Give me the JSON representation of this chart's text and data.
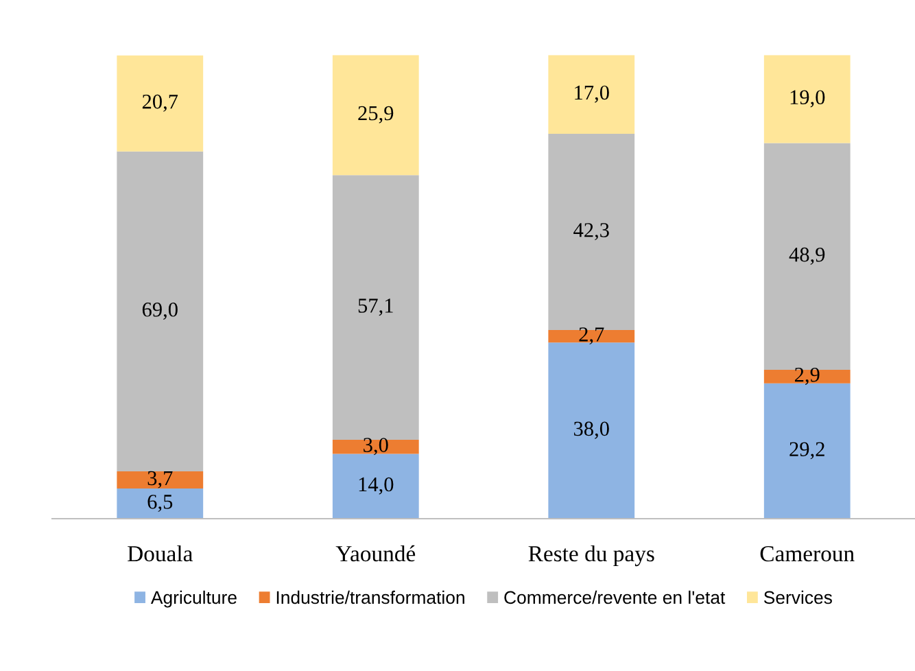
{
  "chart_data": {
    "type": "bar",
    "stacked": true,
    "legend": "bottom",
    "grid": false,
    "categories": [
      "Douala",
      "Yaoundé",
      "Reste du pays",
      "Cameroun"
    ],
    "series": [
      {
        "name": "Agriculture",
        "color": "#8eb4e3",
        "values": [
          6.5,
          14.0,
          38.0,
          29.2
        ],
        "value_labels": [
          "6,5",
          "14,0",
          "38,0",
          "29,2"
        ]
      },
      {
        "name": "Industrie/transformation",
        "color": "#ed7d31",
        "values": [
          3.7,
          3.0,
          2.7,
          2.9
        ],
        "value_labels": [
          "3,7",
          "3,0",
          "2,7",
          "2,9"
        ]
      },
      {
        "name": "Commerce/revente en l'etat",
        "color": "#bfbfbf",
        "values": [
          69.0,
          57.1,
          42.3,
          48.9
        ],
        "value_labels": [
          "69,0",
          "57,1",
          "42,3",
          "48,9"
        ]
      },
      {
        "name": "Services",
        "color": "#ffe699",
        "values": [
          20.7,
          25.9,
          17.0,
          19.0
        ],
        "value_labels": [
          "20,7",
          "25,9",
          "17,0",
          "19,0"
        ]
      }
    ]
  }
}
